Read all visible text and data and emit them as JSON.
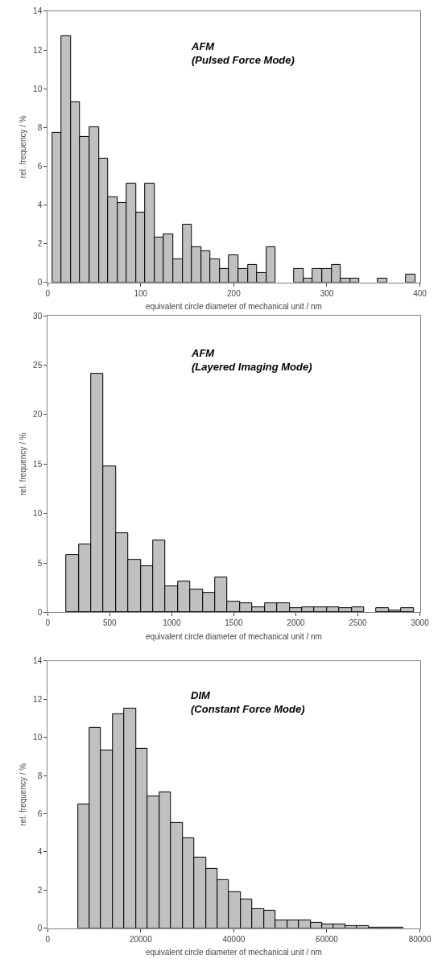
{
  "chart_data": [
    {
      "type": "histogram",
      "bins": [
        5,
        15,
        25,
        35,
        45,
        55,
        65,
        75,
        85,
        95,
        105,
        115,
        125,
        135,
        145,
        155,
        165,
        175,
        185,
        195,
        205,
        215,
        225,
        235,
        245,
        255,
        265,
        275,
        285,
        295,
        305,
        315,
        325,
        335,
        345,
        355,
        365,
        375,
        385,
        395
      ],
      "values": [
        7.7,
        12.7,
        9.3,
        7.5,
        8.0,
        6.4,
        4.4,
        4.1,
        5.1,
        3.6,
        5.1,
        2.3,
        2.5,
        1.2,
        3.0,
        1.8,
        1.6,
        1.2,
        0.7,
        1.4,
        0.7,
        0.9,
        0.5,
        1.8,
        0,
        0,
        0.7,
        0.2,
        0.7,
        0.7,
        0.9,
        0.2,
        0.2,
        0,
        0,
        0.2,
        0,
        0,
        0.4
      ],
      "color": "#c0c0c0",
      "xlim": [
        0,
        400
      ],
      "xticks": [
        0,
        100,
        200,
        300,
        400
      ],
      "ylim": [
        0,
        14
      ],
      "yticks": [
        0,
        2,
        4,
        6,
        8,
        10,
        12,
        14
      ],
      "xlabel": "equivalent circle diameter of mechanical unit / nm",
      "ylabel": "rel. frequency / %",
      "annotations": [
        "AFM\n(Pulsed Force Mode)"
      ]
    },
    {
      "type": "histogram",
      "bins": [
        150,
        250,
        350,
        450,
        550,
        650,
        750,
        850,
        950,
        1050,
        1150,
        1250,
        1350,
        1450,
        1550,
        1650,
        1750,
        1850,
        1950,
        2050,
        2150,
        2250,
        2350,
        2450,
        2550,
        2650,
        2750,
        2850,
        2950
      ],
      "values": [
        5.8,
        6.9,
        24.1,
        14.8,
        8.0,
        5.3,
        4.7,
        7.3,
        2.6,
        3.1,
        2.3,
        2.0,
        3.5,
        1.1,
        0.9,
        0.5,
        0.9,
        0.9,
        0.4,
        0.5,
        0.5,
        0.5,
        0.4,
        0.5,
        0,
        0.4,
        0.2,
        0.4
      ],
      "color": "#c0c0c0",
      "xlim": [
        0,
        3000
      ],
      "xticks": [
        0,
        500,
        1000,
        1500,
        2000,
        2500,
        3000
      ],
      "ylim": [
        0,
        30
      ],
      "yticks": [
        0,
        5,
        10,
        15,
        20,
        25,
        30
      ],
      "xlabel": "equivalent circle diameter of mechanical unit / nm",
      "ylabel": "rel. frequency / %",
      "annotations": [
        "AFM\n(Layered Imaging Mode)"
      ]
    },
    {
      "type": "histogram",
      "bins": [
        6500,
        9000,
        11500,
        14000,
        16500,
        19000,
        21500,
        24000,
        26500,
        29000,
        31500,
        34000,
        36500,
        39000,
        41500,
        44000,
        46500,
        49000,
        51500,
        54000,
        56500,
        59000,
        61500,
        64000,
        66500,
        69000,
        71500,
        74000,
        76500
      ],
      "values": [
        6.5,
        10.5,
        9.3,
        11.2,
        11.5,
        9.4,
        6.9,
        7.1,
        5.5,
        4.7,
        3.7,
        3.1,
        2.5,
        1.9,
        1.5,
        1.0,
        0.9,
        0.4,
        0.4,
        0.4,
        0.3,
        0.2,
        0.2,
        0.1,
        0.1,
        0.05,
        0.03,
        0.05
      ],
      "color": "#c0c0c0",
      "xlim": [
        0,
        80000
      ],
      "xticks": [
        0,
        20000,
        40000,
        60000,
        80000
      ],
      "ylim": [
        0,
        14
      ],
      "yticks": [
        0,
        2,
        4,
        6,
        8,
        10,
        12,
        14
      ],
      "xlabel": "equivalent circle diameter of mechanical unit / nm",
      "ylabel": "rel. frequency / %",
      "annotations": [
        "DIM\n(Constant Force Mode)"
      ]
    }
  ]
}
